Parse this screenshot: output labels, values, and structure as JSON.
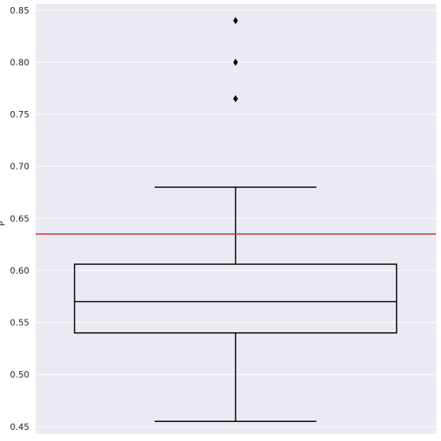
{
  "chart_data": {
    "type": "box",
    "title": "",
    "xlabel": "",
    "ylabel": "P",
    "ylim": [
      0.443,
      0.856
    ],
    "yticks": [
      0.45,
      0.5,
      0.55,
      0.6,
      0.65,
      0.7,
      0.75,
      0.8,
      0.85
    ],
    "ytick_labels": [
      "0.45",
      "0.50",
      "0.55",
      "0.60",
      "0.65",
      "0.70",
      "0.75",
      "0.80",
      "0.85"
    ],
    "grid": true,
    "box": {
      "whisker_low": 0.455,
      "q1": 0.54,
      "median": 0.57,
      "q3": 0.606,
      "whisker_high": 0.68
    },
    "outliers": [
      0.765,
      0.8,
      0.84
    ],
    "reference_line": {
      "y": 0.635,
      "color": "#d62728"
    },
    "colors": {
      "background": "#eaeaf2",
      "box": "#000000"
    }
  }
}
